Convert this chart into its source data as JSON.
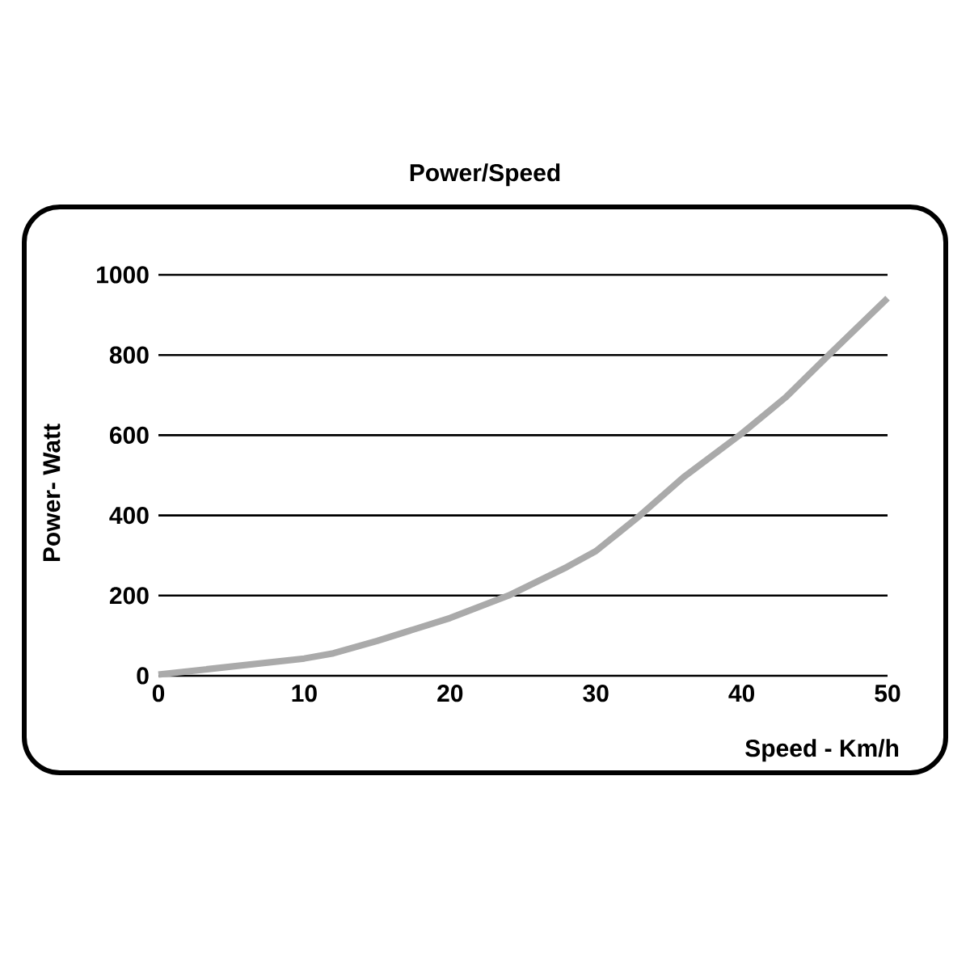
{
  "chart_data": {
    "type": "line",
    "title": "Power/Speed",
    "xlabel": "Speed - Km/h",
    "ylabel": "Power- Watt",
    "x": [
      0,
      10,
      12,
      15,
      20,
      24,
      28,
      30,
      33,
      36,
      40,
      43,
      46,
      50
    ],
    "values": [
      3,
      43,
      56,
      87,
      144,
      200,
      271,
      311,
      399,
      495,
      604,
      694,
      801,
      942
    ],
    "color": "#aaaaaa",
    "xlim": [
      0,
      50
    ],
    "ylim": [
      0,
      1000
    ],
    "xticks": [
      0,
      10,
      20,
      30,
      40,
      50
    ],
    "yticks": [
      0,
      200,
      400,
      600,
      800,
      1000
    ],
    "grid": "y"
  }
}
